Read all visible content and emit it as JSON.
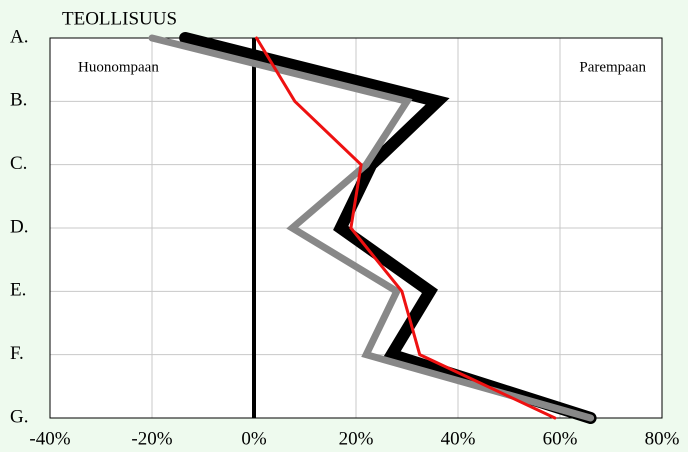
{
  "chart_data": {
    "type": "line",
    "title": "TEOLLISUUS",
    "annotations": [
      "Huonompaan",
      "Parempaan"
    ],
    "categories": [
      "A.",
      "B.",
      "C.",
      "D.",
      "E.",
      "F.",
      "G."
    ],
    "series": [
      {
        "color": "#000000",
        "values": [
          -13.5,
          36,
          23,
          17,
          34.5,
          27,
          66
        ]
      },
      {
        "color": "#888888",
        "values": [
          -20,
          30,
          22,
          7.5,
          28,
          22,
          66
        ]
      },
      {
        "color": "#ee1111",
        "values": [
          0.5,
          8,
          21,
          19,
          29,
          32.5,
          59
        ]
      }
    ],
    "xlim": [
      -40,
      80
    ],
    "xticks": [
      {
        "value": -40,
        "label": "-40%"
      },
      {
        "value": -20,
        "label": "-20%"
      },
      {
        "value": 0,
        "label": "0%"
      },
      {
        "value": 20,
        "label": "20%"
      },
      {
        "value": 40,
        "label": "40%"
      },
      {
        "value": 60,
        "label": "60%"
      },
      {
        "value": 80,
        "label": "80%"
      }
    ],
    "grid": true
  }
}
